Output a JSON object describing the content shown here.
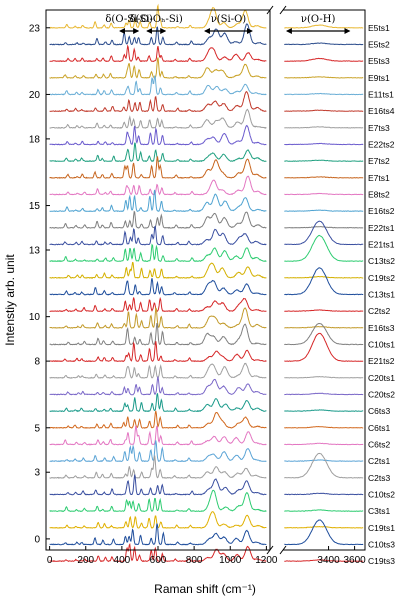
{
  "chart_data": {
    "type": "line",
    "xlabel": "Raman shift (cm⁻¹)",
    "ylabel": "Intenstiy arb. unit",
    "x_left_ticks": [
      0,
      200,
      400,
      600,
      800,
      1000,
      1200
    ],
    "x_right_ticks": [
      3400,
      3600
    ],
    "xlim_left": [
      -20,
      1220
    ],
    "xlim_right": [
      3050,
      3680
    ],
    "ylim": [
      -0.5,
      23.8
    ],
    "y_ticks": [
      0,
      3,
      5,
      8,
      10,
      13,
      15,
      18,
      20,
      23
    ],
    "grid": false,
    "annotations": [
      {
        "text": "δ(O-Si-O)",
        "x_range": [
          390,
          490
        ]
      },
      {
        "text": "δ(Si-Oₕ-Si)",
        "x_range": [
          540,
          640
        ]
      },
      {
        "text": "ν(Si-O)",
        "x_range": [
          860,
          1120
        ]
      },
      {
        "text": "ν(O-H)",
        "x_range": [
          3080,
          3560
        ]
      }
    ],
    "series": [
      {
        "name": "E5ts1",
        "color": "#e8b730",
        "offset": 22.0,
        "oh": 0.12
      },
      {
        "name": "E5ts2",
        "color": "#2b4c8c",
        "offset": 21.25,
        "oh": 0.06
      },
      {
        "name": "E5ts3",
        "color": "#d62728",
        "offset": 20.5,
        "oh": 0.12
      },
      {
        "name": "E9ts1",
        "color": "#c9a227",
        "offset": 19.75,
        "oh": 0.04
      },
      {
        "name": "E11ts1",
        "color": "#6aaed6",
        "offset": 19.0,
        "oh": 0.04
      },
      {
        "name": "E16ts4",
        "color": "#c0392b",
        "offset": 18.25,
        "oh": 0.04
      },
      {
        "name": "E7ts3",
        "color": "#9e9e9e",
        "offset": 17.5,
        "oh": 0.04
      },
      {
        "name": "E22ts2",
        "color": "#6a5acd",
        "offset": 16.75,
        "oh": 0.04
      },
      {
        "name": "E7ts2",
        "color": "#20a080",
        "offset": 16.0,
        "oh": 0.04
      },
      {
        "name": "E7ts1",
        "color": "#c7651e",
        "offset": 15.25,
        "oh": 0.04
      },
      {
        "name": "E8ts2",
        "color": "#e377c2",
        "offset": 14.5,
        "oh": 0.04
      },
      {
        "name": "E16ts2",
        "color": "#4fa3d1",
        "offset": 13.75,
        "oh": 0.04
      },
      {
        "name": "E22ts1",
        "color": "#7f7f7f",
        "offset": 13.0,
        "oh": 0.05
      },
      {
        "name": "E21ts1",
        "color": "#3a4fa0",
        "offset": 12.25,
        "oh": 1.05
      },
      {
        "name": "C13ts2",
        "color": "#2ecc71",
        "offset": 11.5,
        "oh": 1.15
      },
      {
        "name": "C19ts2",
        "color": "#d4b000",
        "offset": 10.75,
        "oh": 0.05
      },
      {
        "name": "C13ts1",
        "color": "#1f4e9c",
        "offset": 10.0,
        "oh": 1.2
      },
      {
        "name": "C2ts2",
        "color": "#d62728",
        "offset": 9.25,
        "oh": 0.05
      },
      {
        "name": "E16ts3",
        "color": "#c29a2a",
        "offset": 8.5,
        "oh": 0.05
      },
      {
        "name": "C10ts1",
        "color": "#808080",
        "offset": 7.75,
        "oh": 0.95
      },
      {
        "name": "E21ts2",
        "color": "#d62728",
        "offset": 7.0,
        "oh": 1.25
      },
      {
        "name": "C20ts1",
        "color": "#a0a0a0",
        "offset": 6.25,
        "oh": 0.05
      },
      {
        "name": "C20ts2",
        "color": "#7b68c8",
        "offset": 5.5,
        "oh": 0.05
      },
      {
        "name": "C6ts3",
        "color": "#1a9a8a",
        "offset": 4.75,
        "oh": 0.05
      },
      {
        "name": "C6ts1",
        "color": "#d2691e",
        "offset": 4.0,
        "oh": 0.05
      },
      {
        "name": "C6ts2",
        "color": "#e377c2",
        "offset": 3.25,
        "oh": 0.05
      },
      {
        "name": "C2ts1",
        "color": "#5ba4d6",
        "offset": 2.5,
        "oh": 0.05
      },
      {
        "name": "C2ts3",
        "color": "#9e9e9e",
        "offset": 1.75,
        "oh": 1.1
      },
      {
        "name": "C10ts2",
        "color": "#3a4fa0",
        "offset": 1.0,
        "oh": 0.05
      },
      {
        "name": "C3ts1",
        "color": "#2ecc71",
        "offset": 0.25,
        "oh": 0.05
      },
      {
        "name": "C19ts1",
        "color": "#e0b000",
        "offset": -0.5,
        "oh": 0.05
      },
      {
        "name": "C10ts3",
        "color": "#1f4e9c",
        "offset": -1.25,
        "oh": 1.1
      },
      {
        "name": "C19ts3",
        "color": "#d62728",
        "offset": -2.0,
        "oh": 0.05
      }
    ]
  }
}
